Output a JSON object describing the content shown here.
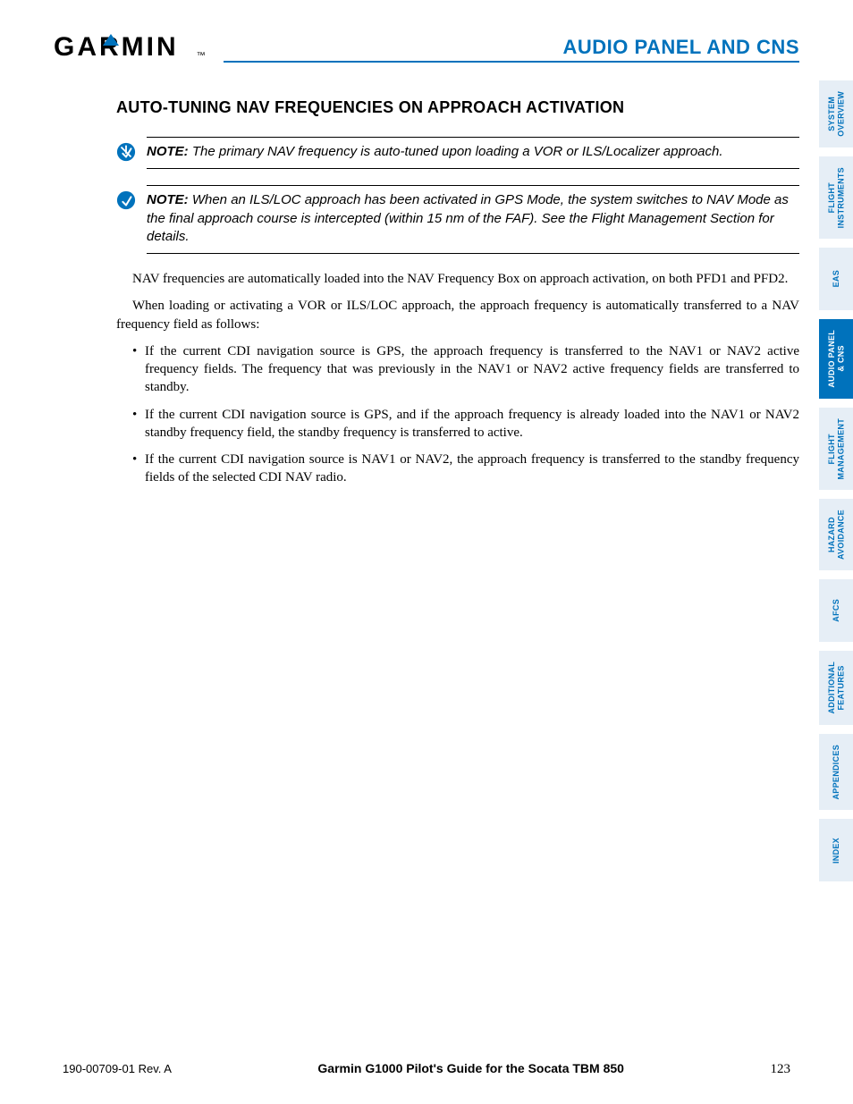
{
  "colors": {
    "brand_blue": "#0072bc",
    "tab_bg": "#e6eef6",
    "tab_active_bg": "#0072bc",
    "tab_text": "#0072bc",
    "tab_active_text": "#ffffff",
    "text": "#000000",
    "background": "#ffffff"
  },
  "typography": {
    "body_font": "Georgia, serif",
    "heading_font": "Arial, Helvetica, sans-serif",
    "body_size_pt": 15,
    "h2_size_pt": 18,
    "section_title_size_pt": 22,
    "tab_size_pt": 9
  },
  "header": {
    "logo_text": "GARMIN",
    "logo_tm": "™",
    "section_title": "AUDIO PANEL AND CNS"
  },
  "tabs": [
    {
      "label": "SYSTEM\nOVERVIEW",
      "active": false
    },
    {
      "label": "FLIGHT\nINSTRUMENTS",
      "active": false
    },
    {
      "label": "EAS",
      "active": false
    },
    {
      "label": "AUDIO PANEL\n& CNS",
      "active": true
    },
    {
      "label": "FLIGHT\nMANAGEMENT",
      "active": false
    },
    {
      "label": "HAZARD\nAVOIDANCE",
      "active": false
    },
    {
      "label": "AFCS",
      "active": false
    },
    {
      "label": "ADDITIONAL\nFEATURES",
      "active": false
    },
    {
      "label": "APPENDICES",
      "active": false
    },
    {
      "label": "INDEX",
      "active": false
    }
  ],
  "content": {
    "heading": "AUTO-TUNING NAV FREQUENCIES ON APPROACH ACTIVATION",
    "note_label": "NOTE:",
    "notes": [
      "The primary NAV frequency is auto-tuned upon loading a VOR or ILS/Localizer approach.",
      "When an ILS/LOC approach has been activated in GPS Mode, the system switches to NAV Mode as the final approach course is intercepted (within 15 nm of the FAF).  See the Flight Management Section for details."
    ],
    "paragraphs": [
      "NAV frequencies are automatically loaded into the NAV Frequency Box on approach activation, on both PFD1 and PFD2.",
      "When loading or activating a VOR or ILS/LOC approach, the approach frequency is automatically transferred to a NAV frequency field as follows:"
    ],
    "bullets": [
      "If the current CDI navigation source is GPS, the approach frequency is transferred to the NAV1 or NAV2 active frequency fields.  The frequency that was previously in the NAV1 or NAV2 active frequency fields are transferred to standby.",
      "If the current CDI navigation source is GPS, and if the approach frequency is already loaded into the NAV1 or NAV2 standby frequency field, the standby frequency is transferred to active.",
      "If the current CDI navigation source is NAV1 or NAV2, the approach frequency is transferred to the standby frequency fields of the selected CDI NAV radio."
    ]
  },
  "footer": {
    "doc_id": "190-00709-01  Rev. A",
    "doc_title": "Garmin G1000 Pilot's Guide for the Socata TBM 850",
    "page_no": "123"
  }
}
